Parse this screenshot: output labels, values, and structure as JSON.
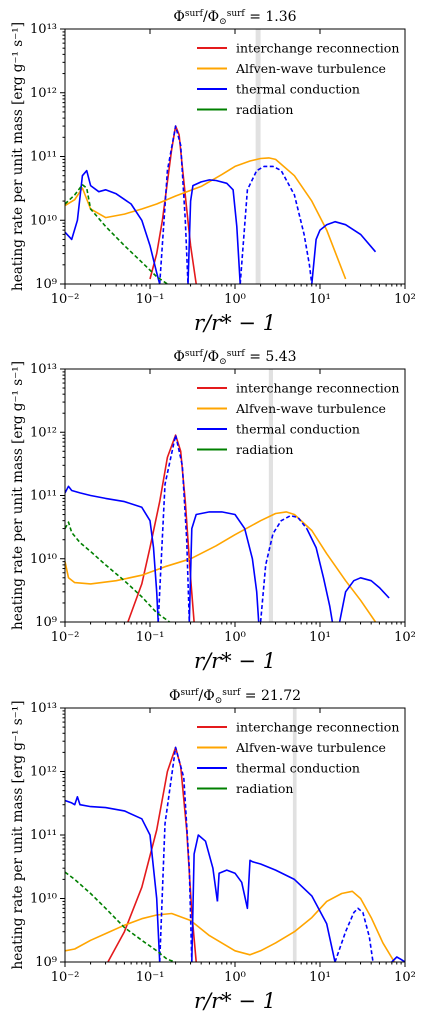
{
  "chart_data": [
    {
      "type": "line",
      "title": "Φsurf/Φ⊙surf = 1.36",
      "title_main": "Φ",
      "title_sup1": "surf",
      "title_mid": "/Φ",
      "title_sub2": "⊙",
      "title_sup2": "surf",
      "title_value": " = 1.36",
      "xlabel": "r/r* − 1",
      "ylabel": "heating rate per unit mass [erg g⁻¹ s⁻¹]",
      "xscale": "log",
      "yscale": "log",
      "xlim": [
        0.01,
        100
      ],
      "ylim": [
        1000000000.0,
        10000000000000.0
      ],
      "x_tick_labels": [
        "10⁻²",
        "10⁻¹",
        "10⁰",
        "10¹",
        "10²"
      ],
      "y_tick_labels": [
        "10⁹",
        "10¹⁰",
        "10¹¹",
        "10¹²",
        "10¹³"
      ],
      "legend_position": "top-right",
      "shaded_band_x": [
        1.75,
        2.0
      ],
      "series": [
        {
          "name": "interchange reconnection",
          "color": "#e41a1c",
          "style": "solid",
          "x": [
            0.1,
            0.12,
            0.14,
            0.16,
            0.18,
            0.2,
            0.22,
            0.24,
            0.27,
            0.3,
            0.35
          ],
          "y": [
            1200000000.0,
            3000000000.0,
            10000000000.0,
            40000000000.0,
            130000000000.0,
            300000000000.0,
            220000000000.0,
            70000000000.0,
            15000000000.0,
            4000000000.0,
            1000000000.0
          ]
        },
        {
          "name": "Alfven-wave turbulence",
          "color": "#ffa500",
          "style": "solid",
          "x": [
            0.01,
            0.013,
            0.016,
            0.02,
            0.03,
            0.05,
            0.08,
            0.12,
            0.2,
            0.4,
            0.7,
            1.0,
            1.5,
            2.0,
            2.5,
            3.0,
            5.0,
            8.0,
            12.0,
            20.0
          ],
          "y": [
            17000000000.0,
            21000000000.0,
            32000000000.0,
            15000000000.0,
            11000000000.0,
            12500000000.0,
            15000000000.0,
            18000000000.0,
            24000000000.0,
            34000000000.0,
            52000000000.0,
            70000000000.0,
            85000000000.0,
            93000000000.0,
            95000000000.0,
            90000000000.0,
            50000000000.0,
            20000000000.0,
            7000000000.0,
            1200000000.0
          ]
        },
        {
          "name": "thermal conduction",
          "color": "#0000ff",
          "style": "solid",
          "x": [
            0.01,
            0.012,
            0.014,
            0.016,
            0.018,
            0.02,
            0.025,
            0.03,
            0.04,
            0.06,
            0.08,
            0.1,
            0.12,
            0.13
          ],
          "y": [
            6500000000.0,
            5000000000.0,
            10000000000.0,
            50000000000.0,
            60000000000.0,
            35000000000.0,
            28000000000.0,
            30000000000.0,
            26000000000.0,
            18000000000.0,
            10000000000.0,
            4000000000.0,
            1500000000.0,
            1000000000.0
          ]
        },
        {
          "name": "thermal conduction (dashed)",
          "color": "#0000ff",
          "style": "dashed",
          "x": [
            0.13,
            0.16,
            0.2,
            0.23,
            0.26,
            0.28
          ],
          "y": [
            1000000000.0,
            60000000000.0,
            300000000000.0,
            150000000000.0,
            10000000000.0,
            1000000000.0
          ]
        },
        {
          "name": "thermal conduction (2)",
          "color": "#0000ff",
          "style": "solid",
          "x": [
            0.28,
            0.3,
            0.32,
            0.4,
            0.5,
            0.6,
            0.8,
            0.95,
            1.05,
            1.15
          ],
          "y": [
            1000000000.0,
            20000000000.0,
            35000000000.0,
            40000000000.0,
            43000000000.0,
            42000000000.0,
            38000000000.0,
            30000000000.0,
            8000000000.0,
            1000000000.0
          ]
        },
        {
          "name": "thermal conduction (dashed 2)",
          "color": "#0000ff",
          "style": "dashed",
          "x": [
            1.15,
            1.4,
            1.8,
            2.2,
            2.8,
            3.5,
            5.0,
            6.5,
            7.5,
            8.0
          ],
          "y": [
            1000000000.0,
            30000000000.0,
            60000000000.0,
            70000000000.0,
            70000000000.0,
            60000000000.0,
            25000000000.0,
            6000000000.0,
            2000000000.0,
            1000000000.0
          ]
        },
        {
          "name": "thermal conduction (3)",
          "color": "#0000ff",
          "style": "solid",
          "x": [
            8.0,
            9.0,
            10.0,
            12.0,
            15.0,
            20.0,
            30.0,
            45.0
          ],
          "y": [
            1000000000.0,
            5000000000.0,
            7000000000.0,
            8500000000.0,
            9500000000.0,
            8500000000.0,
            6000000000.0,
            3200000000.0
          ]
        },
        {
          "name": "radiation",
          "color": "#008000",
          "style": "dashed",
          "x": [
            0.01,
            0.013,
            0.016,
            0.018,
            0.02,
            0.03,
            0.05,
            0.08,
            0.12,
            0.16
          ],
          "y": [
            18000000000.0,
            25000000000.0,
            36000000000.0,
            32000000000.0,
            15000000000.0,
            8000000000.0,
            4000000000.0,
            2200000000.0,
            1300000000.0,
            1000000000.0
          ]
        }
      ]
    },
    {
      "type": "line",
      "title": "Φsurf/Φ⊙surf = 5.43",
      "title_main": "Φ",
      "title_sup1": "surf",
      "title_mid": "/Φ",
      "title_sub2": "⊙",
      "title_sup2": "surf",
      "title_value": " = 5.43",
      "xlabel": "r/r* − 1",
      "ylabel": "heating rate per unit mass [erg g⁻¹ s⁻¹]",
      "xscale": "log",
      "yscale": "log",
      "xlim": [
        0.01,
        100
      ],
      "ylim": [
        1000000000.0,
        10000000000000.0
      ],
      "x_tick_labels": [
        "10⁻²",
        "10⁻¹",
        "10⁰",
        "10¹",
        "10²"
      ],
      "y_tick_labels": [
        "10⁹",
        "10¹⁰",
        "10¹¹",
        "10¹²",
        "10¹³"
      ],
      "legend_position": "top-right",
      "shaded_band_x": [
        2.5,
        2.8
      ],
      "series": [
        {
          "name": "interchange reconnection",
          "color": "#e41a1c",
          "style": "solid",
          "x": [
            0.055,
            0.08,
            0.1,
            0.13,
            0.16,
            0.2,
            0.23,
            0.26,
            0.3,
            0.33
          ],
          "y": [
            1000000000.0,
            4000000000.0,
            15000000000.0,
            80000000000.0,
            400000000000.0,
            900000000000.0,
            500000000000.0,
            80000000000.0,
            5000000000.0,
            1000000000.0
          ]
        },
        {
          "name": "Alfven-wave turbulence",
          "color": "#ffa500",
          "style": "solid",
          "x": [
            0.01,
            0.011,
            0.013,
            0.02,
            0.04,
            0.08,
            0.15,
            0.3,
            0.6,
            1.0,
            2.0,
            3.0,
            4.0,
            5.0,
            8.0,
            12.0,
            20.0,
            30.0,
            45.0
          ],
          "y": [
            9000000000.0,
            5000000000.0,
            4200000000.0,
            4000000000.0,
            4500000000.0,
            5500000000.0,
            7500000000.0,
            10000000000.0,
            16000000000.0,
            24000000000.0,
            40000000000.0,
            52000000000.0,
            55000000000.0,
            50000000000.0,
            28000000000.0,
            12000000000.0,
            4500000000.0,
            2200000000.0,
            1000000000.0
          ]
        },
        {
          "name": "thermal conduction",
          "color": "#0000ff",
          "style": "solid",
          "x": [
            0.01,
            0.011,
            0.012,
            0.015,
            0.02,
            0.03,
            0.05,
            0.08,
            0.1,
            0.11,
            0.12,
            0.125
          ],
          "y": [
            110000000000.0,
            140000000000.0,
            120000000000.0,
            110000000000.0,
            100000000000.0,
            90000000000.0,
            80000000000.0,
            65000000000.0,
            40000000000.0,
            15000000000.0,
            3000000000.0,
            1000000000.0
          ]
        },
        {
          "name": "thermal conduction (dashed)",
          "color": "#0000ff",
          "style": "dashed",
          "x": [
            0.125,
            0.15,
            0.2,
            0.24,
            0.27,
            0.29
          ],
          "y": [
            1000000000.0,
            150000000000.0,
            900000000000.0,
            300000000000.0,
            20000000000.0,
            1000000000.0
          ]
        },
        {
          "name": "thermal conduction (2)",
          "color": "#0000ff",
          "style": "solid",
          "x": [
            0.29,
            0.31,
            0.35,
            0.5,
            0.7,
            1.0,
            1.3,
            1.6,
            1.8,
            1.9
          ],
          "y": [
            1000000000.0,
            30000000000.0,
            50000000000.0,
            55000000000.0,
            55000000000.0,
            50000000000.0,
            30000000000.0,
            10000000000.0,
            3000000000.0,
            1000000000.0
          ]
        },
        {
          "name": "thermal conduction (dashed 2)",
          "color": "#0000ff",
          "style": "dashed",
          "x": [
            2.0,
            2.3,
            2.8,
            3.5,
            4.5,
            5.5,
            7.0
          ],
          "y": [
            1000000000.0,
            8000000000.0,
            25000000000.0,
            40000000000.0,
            48000000000.0,
            45000000000.0,
            30000000000.0
          ]
        },
        {
          "name": "thermal conduction (3)",
          "color": "#0000ff",
          "style": "solid",
          "x": [
            7.0,
            9.0,
            11.0,
            13.0,
            14.0
          ],
          "y": [
            30000000000.0,
            15000000000.0,
            5000000000.0,
            1800000000.0,
            1000000000.0
          ]
        },
        {
          "name": "thermal conduction (4)",
          "color": "#0000ff",
          "style": "solid",
          "x": [
            17.0,
            20.0,
            25.0,
            30.0,
            40.0,
            50.0,
            65.0
          ],
          "y": [
            1000000000.0,
            3000000000.0,
            4500000000.0,
            5000000000.0,
            4500000000.0,
            3500000000.0,
            2400000000.0
          ]
        },
        {
          "name": "radiation",
          "color": "#008000",
          "style": "dashed",
          "x": [
            0.01,
            0.011,
            0.012,
            0.015,
            0.02,
            0.03,
            0.05,
            0.08,
            0.12,
            0.17
          ],
          "y": [
            30000000000.0,
            38000000000.0,
            26000000000.0,
            18000000000.0,
            13000000000.0,
            8000000000.0,
            4500000000.0,
            2500000000.0,
            1400000000.0,
            1000000000.0
          ]
        }
      ]
    },
    {
      "type": "line",
      "title": "Φsurf/Φ⊙surf = 21.72",
      "title_main": "Φ",
      "title_sup1": "surf",
      "title_mid": "/Φ",
      "title_sub2": "⊙",
      "title_sup2": "surf",
      "title_value": " = 21.72",
      "xlabel": "r/r* − 1",
      "ylabel": "heating rate per unit mass [erg g⁻¹ s⁻¹]",
      "xscale": "log",
      "yscale": "log",
      "xlim": [
        0.01,
        100
      ],
      "ylim": [
        1000000000.0,
        10000000000000.0
      ],
      "x_tick_labels": [
        "10⁻²",
        "10⁻¹",
        "10⁰",
        "10¹",
        "10²"
      ],
      "y_tick_labels": [
        "10⁹",
        "10¹⁰",
        "10¹¹",
        "10¹²",
        "10¹³"
      ],
      "legend_position": "top-right",
      "shaded_band_x": [
        4.8,
        5.3
      ],
      "series": [
        {
          "name": "interchange reconnection",
          "color": "#e41a1c",
          "style": "solid",
          "x": [
            0.032,
            0.05,
            0.08,
            0.12,
            0.16,
            0.2,
            0.23,
            0.27,
            0.31,
            0.35
          ],
          "y": [
            1000000000.0,
            3000000000.0,
            15000000000.0,
            120000000000.0,
            1000000000000.0,
            2400000000000.0,
            1200000000000.0,
            120000000000.0,
            6000000000.0,
            1000000000.0
          ]
        },
        {
          "name": "Alfven-wave turbulence",
          "color": "#ffa500",
          "style": "solid",
          "x": [
            0.01,
            0.013,
            0.02,
            0.03,
            0.05,
            0.08,
            0.12,
            0.18,
            0.3,
            0.5,
            1.0,
            1.5,
            2.0,
            3.0,
            5.0,
            8.0,
            12.0,
            18.0,
            24.0,
            30.0,
            40.0,
            55.0,
            75.0
          ],
          "y": [
            1500000000.0,
            1600000000.0,
            2200000000.0,
            2800000000.0,
            3800000000.0,
            4800000000.0,
            5500000000.0,
            5800000000.0,
            4500000000.0,
            2600000000.0,
            1500000000.0,
            1300000000.0,
            1500000000.0,
            2000000000.0,
            3000000000.0,
            5000000000.0,
            9000000000.0,
            12000000000.0,
            13000000000.0,
            10000000000.0,
            5000000000.0,
            2000000000.0,
            1000000000.0
          ]
        },
        {
          "name": "thermal conduction",
          "color": "#0000ff",
          "style": "solid",
          "x": [
            0.01,
            0.012,
            0.013,
            0.014,
            0.015,
            0.02,
            0.03,
            0.05,
            0.08,
            0.1,
            0.12,
            0.13
          ],
          "y": [
            350000000000.0,
            320000000000.0,
            300000000000.0,
            400000000000.0,
            300000000000.0,
            280000000000.0,
            270000000000.0,
            240000000000.0,
            180000000000.0,
            100000000000.0,
            10000000000.0,
            1000000000.0
          ]
        },
        {
          "name": "thermal conduction (dashed)",
          "color": "#0000ff",
          "style": "dashed",
          "x": [
            0.13,
            0.15,
            0.2,
            0.25,
            0.29,
            0.31
          ],
          "y": [
            1000000000.0,
            150000000000.0,
            2400000000000.0,
            800000000000.0,
            30000000000.0,
            1000000000.0
          ]
        },
        {
          "name": "thermal conduction (2)",
          "color": "#0000ff",
          "style": "solid",
          "x": [
            0.31,
            0.33,
            0.37,
            0.45,
            0.55,
            0.62
          ],
          "y": [
            1000000000.0,
            50000000000.0,
            100000000000.0,
            80000000000.0,
            30000000000.0,
            9000000000.0
          ]
        },
        {
          "name": "thermal conduction (3)",
          "color": "#0000ff",
          "style": "solid",
          "x": [
            0.62,
            0.65,
            0.8,
            1.0,
            1.2,
            1.4,
            1.5,
            1.6,
            2.0,
            3.0,
            5.0,
            8.0,
            12.0,
            15.0
          ],
          "y": [
            9000000000.0,
            25000000000.0,
            28000000000.0,
            25000000000.0,
            18000000000.0,
            7000000000.0,
            40000000000.0,
            38000000000.0,
            35000000000.0,
            28000000000.0,
            20000000000.0,
            11000000000.0,
            4000000000.0,
            1000000000.0
          ]
        },
        {
          "name": "thermal conduction (dashed 2)",
          "color": "#0000ff",
          "style": "dashed",
          "x": [
            15.0,
            20.0,
            25.0,
            28.0,
            32.0,
            38.0,
            42.0
          ],
          "y": [
            1000000000.0,
            3000000000.0,
            6000000000.0,
            7000000000.0,
            6000000000.0,
            2500000000.0,
            1000000000.0
          ]
        },
        {
          "name": "thermal conduction (4)",
          "color": "#0000ff",
          "style": "solid",
          "x": [
            70.0,
            80.0,
            90.0,
            100.0
          ],
          "y": [
            1000000000.0,
            1200000000.0,
            1100000000.0,
            1000000000.0
          ]
        },
        {
          "name": "radiation",
          "color": "#008000",
          "style": "dashed",
          "x": [
            0.01,
            0.013,
            0.02,
            0.03,
            0.05,
            0.08,
            0.12,
            0.16,
            0.2
          ],
          "y": [
            26000000000.0,
            20000000000.0,
            12000000000.0,
            7000000000.0,
            3500000000.0,
            2200000000.0,
            1500000000.0,
            1100000000.0,
            1000000000.0
          ]
        }
      ]
    }
  ],
  "legend": {
    "items": [
      {
        "label": "interchange reconnection",
        "color": "#e41a1c",
        "style": "solid"
      },
      {
        "label": "Alfven-wave turbulence",
        "color": "#ffa500",
        "style": "solid"
      },
      {
        "label": "thermal conduction",
        "color": "#0000ff",
        "style": "solid"
      },
      {
        "label": "radiation",
        "color": "#008000",
        "style": "solid"
      }
    ]
  }
}
